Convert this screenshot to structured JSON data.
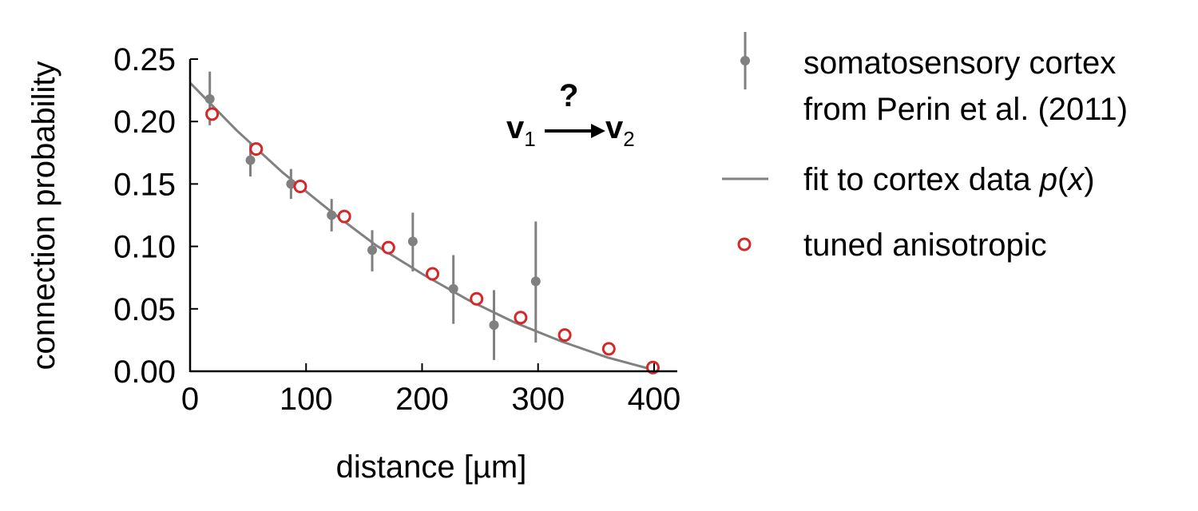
{
  "chart_data": {
    "type": "scatter",
    "xlabel": "distance [µm]",
    "ylabel": "connection probability",
    "xlim": [
      0,
      420
    ],
    "ylim": [
      0,
      0.25
    ],
    "xticks": [
      "0",
      "100",
      "200",
      "300",
      "400"
    ],
    "yticks": [
      "0.00",
      "0.05",
      "0.10",
      "0.15",
      "0.20",
      "0.25"
    ],
    "grid": false,
    "legend_position": "right, outside",
    "series": [
      {
        "name": "somatosensory cortex from Perin et al. (2011)",
        "kind": "points_with_errorbars",
        "color": "#808080",
        "points": [
          {
            "x": 17,
            "y": 0.218,
            "ylo": 0.197,
            "yhi": 0.24
          },
          {
            "x": 52,
            "y": 0.169,
            "ylo": 0.156,
            "yhi": 0.182
          },
          {
            "x": 87,
            "y": 0.15,
            "ylo": 0.138,
            "yhi": 0.162
          },
          {
            "x": 122,
            "y": 0.125,
            "ylo": 0.112,
            "yhi": 0.138
          },
          {
            "x": 157,
            "y": 0.097,
            "ylo": 0.08,
            "yhi": 0.113
          },
          {
            "x": 192,
            "y": 0.104,
            "ylo": 0.08,
            "yhi": 0.127
          },
          {
            "x": 227,
            "y": 0.066,
            "ylo": 0.038,
            "yhi": 0.093
          },
          {
            "x": 262,
            "y": 0.037,
            "ylo": 0.009,
            "yhi": 0.065
          },
          {
            "x": 298,
            "y": 0.072,
            "ylo": 0.023,
            "yhi": 0.12
          }
        ]
      },
      {
        "name": "fit to cortex data p(x)",
        "kind": "line",
        "color": "#808080",
        "x": [
          0,
          40,
          80,
          120,
          160,
          200,
          240,
          280,
          320,
          360,
          400
        ],
        "y": [
          0.231,
          0.193,
          0.159,
          0.129,
          0.101,
          0.078,
          0.057,
          0.039,
          0.024,
          0.011,
          0.001
        ]
      },
      {
        "name": "tuned anisotropic",
        "kind": "open_circles",
        "color": "#d62728",
        "x": [
          19,
          57,
          95,
          133,
          171,
          209,
          247,
          285,
          323,
          361,
          399
        ],
        "y": [
          0.206,
          0.178,
          0.148,
          0.124,
          0.099,
          0.078,
          0.058,
          0.043,
          0.029,
          0.018,
          0.003
        ]
      }
    ]
  },
  "legend": {
    "cortex_line1": "somatosensory cortex",
    "cortex_line2": "from Perin et al. (2011)",
    "fit_prefix": "fit to cortex data ",
    "fit_italic_p": "p",
    "fit_open": "(",
    "fit_italic_x": "x",
    "fit_close": ")",
    "tuned": "tuned anisotropic"
  },
  "annotation": {
    "question": "?",
    "v": "v",
    "sub1": "1",
    "sub2": "2"
  }
}
